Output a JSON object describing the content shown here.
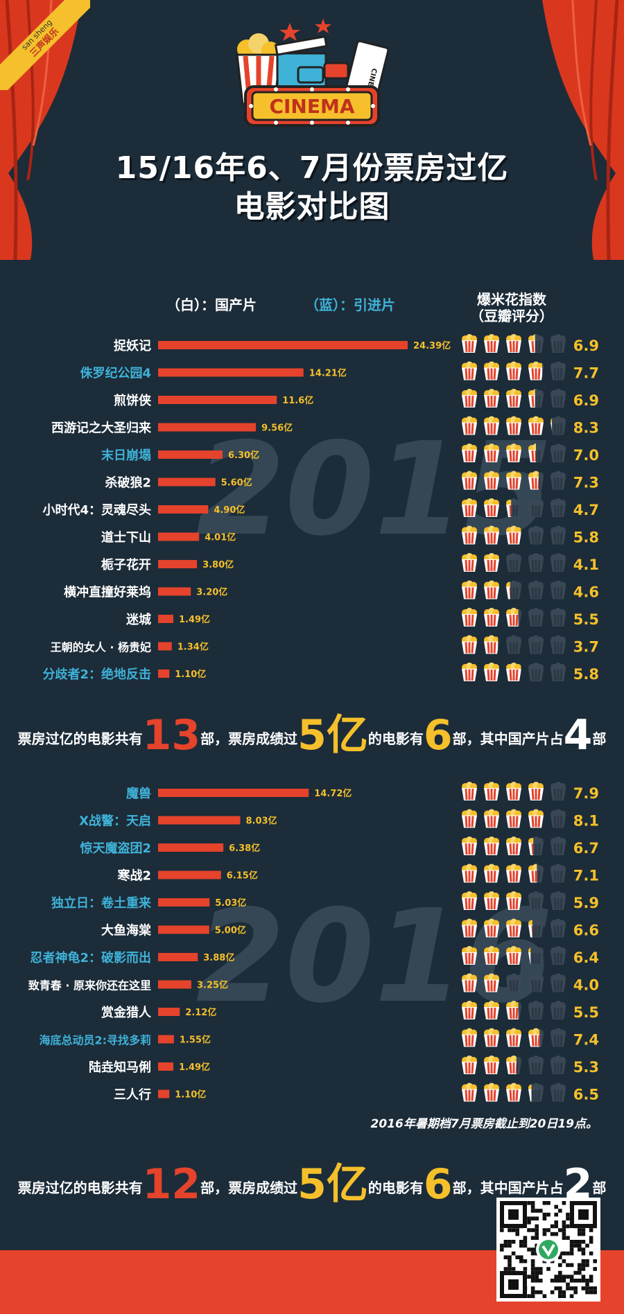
{
  "badge": {
    "brand_en": "san sheng",
    "brand_cn": "三声娱乐"
  },
  "logo": {
    "text": "CINEMA",
    "ticket_text": "CINEMA TICKET"
  },
  "title": {
    "line1": "15/16年6、7月份票房过亿",
    "line2": "电影对比图"
  },
  "legend": {
    "domestic": "（白）：国产片",
    "imported": "（蓝）：引进片",
    "rating_line1": "爆米花指数",
    "rating_line2": "（豆瓣评分）"
  },
  "colors": {
    "background": "#1c2c39",
    "bar": "#e5432c",
    "domestic_label": "#ffffff",
    "imported_label": "#3fb2d8",
    "value_label": "#f5c02b",
    "rating": "#f5c02b",
    "footer": "#e5432c",
    "curtain": "#d9381e"
  },
  "chart_data": [
    {
      "type": "bar",
      "watermark": "2015",
      "categories": [
        "捉妖记",
        "侏罗纪公园4",
        "煎饼侠",
        "西游记之大圣归来",
        "末日崩塌",
        "杀破狼2",
        "小时代4：灵魂尽头",
        "道士下山",
        "栀子花开",
        "横冲直撞好莱坞",
        "迷城",
        "王朝的女人 · 杨贵妃",
        "分歧者2：绝地反击"
      ],
      "values": [
        24.39,
        14.21,
        11.6,
        9.56,
        6.3,
        5.6,
        4.9,
        4.01,
        3.8,
        3.2,
        1.49,
        1.34,
        1.1
      ],
      "value_labels": [
        "24.39亿",
        "14.21亿",
        "11.6亿",
        "9.56亿",
        "6.30亿",
        "5.60亿",
        "4.90亿",
        "4.01亿",
        "3.80亿",
        "3.20亿",
        "1.49亿",
        "1.34亿",
        "1.10亿"
      ],
      "imported": [
        false,
        true,
        false,
        false,
        true,
        false,
        false,
        false,
        false,
        false,
        false,
        false,
        true
      ],
      "ratings": [
        6.9,
        7.7,
        6.9,
        8.3,
        7.0,
        7.3,
        4.7,
        5.8,
        4.1,
        4.6,
        5.5,
        3.7,
        5.8
      ],
      "rating_labels": [
        "6.9",
        "7.7",
        "6.9",
        "8.3",
        "7.0",
        "7.3",
        "4.7",
        "5.8",
        "4.1",
        "4.6",
        "5.5",
        "3.7",
        "5.8"
      ],
      "rating_max": 10
    },
    {
      "type": "bar",
      "watermark": "2016",
      "categories": [
        "魔兽",
        "X战警：天启",
        "惊天魔盗团2",
        "寒战2",
        "独立日：卷土重来",
        "大鱼海棠",
        "忍者神龟2：破影而出",
        "致青春 · 原来你还在这里",
        "赏金猎人",
        "海底总动员2:寻找多莉",
        "陆垚知马俐",
        "三人行"
      ],
      "values": [
        14.72,
        8.03,
        6.38,
        6.15,
        5.03,
        5.0,
        3.88,
        3.25,
        2.12,
        1.55,
        1.49,
        1.1
      ],
      "value_labels": [
        "14.72亿",
        "8.03亿",
        "6.38亿",
        "6.15亿",
        "5.03亿",
        "5.00亿",
        "3.88亿",
        "3.25亿",
        "2.12亿",
        "1.55亿",
        "1.49亿",
        "1.10亿"
      ],
      "imported": [
        true,
        true,
        true,
        false,
        true,
        false,
        true,
        false,
        false,
        true,
        false,
        false
      ],
      "ratings": [
        7.9,
        8.1,
        6.7,
        7.1,
        5.9,
        6.6,
        6.4,
        4.0,
        5.5,
        7.4,
        5.3,
        6.5
      ],
      "rating_labels": [
        "7.9",
        "8.1",
        "6.7",
        "7.1",
        "5.9",
        "6.6",
        "6.4",
        "4.0",
        "5.5",
        "7.4",
        "5.3",
        "6.5"
      ],
      "rating_max": 10
    }
  ],
  "summary_2015": {
    "p1": "票房过亿的电影共有",
    "n1": "13",
    "p2": "部，票房成绩过",
    "n2": "5亿",
    "p3": "的电影有",
    "n3": "6",
    "p4": "部，其中国产片占",
    "n4": "4",
    "p5": "部"
  },
  "summary_2016": {
    "p1": "票房过亿的电影共有",
    "n1": "12",
    "p2": "部，票房成绩过",
    "n2": "5亿",
    "p3": "的电影有",
    "n3": "6",
    "p4": "部，其中国产片占",
    "n4": "2",
    "p5": "部"
  },
  "note": "2016年暑期档7月票房截止到20日19点。",
  "icons": {
    "popcorn": "popcorn-icon",
    "qr": "qr-code-icon"
  }
}
